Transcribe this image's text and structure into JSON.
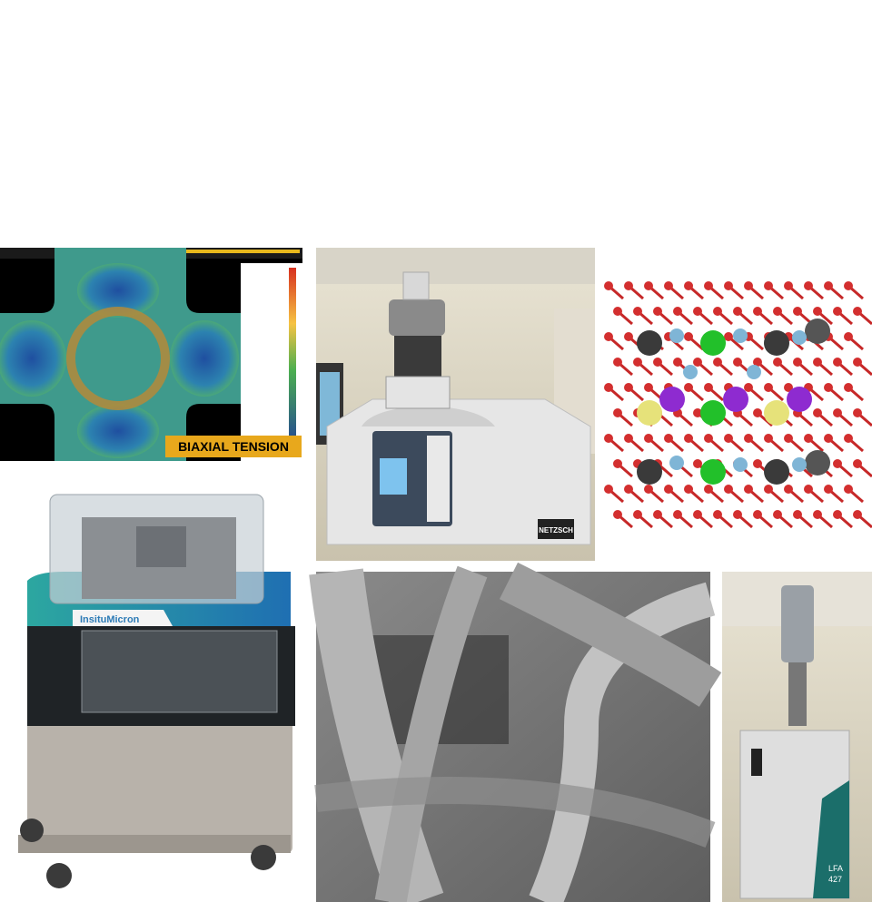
{
  "panels": {
    "strain_map": {
      "label": "BIAXIAL TENSION"
    },
    "dsc_instrument": {
      "brand": "NETZSCH"
    },
    "test_machine": {
      "logo": "InsituMicron"
    },
    "lfa_instrument": {
      "model": [
        "LFA",
        "427"
      ]
    }
  }
}
